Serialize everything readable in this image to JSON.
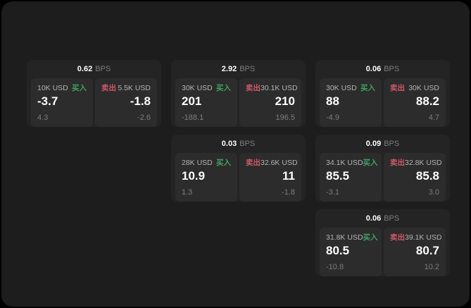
{
  "labels": {
    "bps_unit": "BPS",
    "buy": "买入",
    "sell": "卖出"
  },
  "colors": {
    "page_bg": "#000000",
    "surface_bg": "#1c1d1c",
    "card_bg": "#242424",
    "panel_bg": "#2c2c2c",
    "text_primary": "#ffffff",
    "text_label": "#b3b3b3",
    "text_muted": "#7d7d7d",
    "buy_green": "#3fa35f",
    "sell_red": "#cf5868"
  },
  "cards": [
    {
      "bps": "0.62",
      "col": 0,
      "row": 0,
      "buy": {
        "size": "10K USD",
        "price": "-3.7",
        "delta": "4.3"
      },
      "sell": {
        "size": "5.5K USD",
        "price": "-1.8",
        "delta": "-2.6"
      }
    },
    {
      "bps": "2.92",
      "col": 1,
      "row": 0,
      "buy": {
        "size": "30K USD",
        "price": "201",
        "delta": "-188.1"
      },
      "sell": {
        "size": "30.1K USD",
        "price": "210",
        "delta": "196.5"
      }
    },
    {
      "bps": "0.06",
      "col": 2,
      "row": 0,
      "buy": {
        "size": "30K USD",
        "price": "88",
        "delta": "-4.9"
      },
      "sell": {
        "size": "30K USD",
        "price": "88.2",
        "delta": "4.7"
      }
    },
    {
      "bps": "0.03",
      "col": 1,
      "row": 1,
      "buy": {
        "size": "28K USD",
        "price": "10.9",
        "delta": "1.3"
      },
      "sell": {
        "size": "32.6K USD",
        "price": "11",
        "delta": "-1.8"
      }
    },
    {
      "bps": "0.09",
      "col": 2,
      "row": 1,
      "buy": {
        "size": "34.1K USD",
        "price": "85.5",
        "delta": "-3.1"
      },
      "sell": {
        "size": "32.8K USD",
        "price": "85.8",
        "delta": "3.0"
      }
    },
    {
      "bps": "0.06",
      "col": 2,
      "row": 2,
      "buy": {
        "size": "31.8K USD",
        "price": "80.5",
        "delta": "-10.8"
      },
      "sell": {
        "size": "39.1K USD",
        "price": "80.7",
        "delta": "10.2"
      }
    }
  ]
}
